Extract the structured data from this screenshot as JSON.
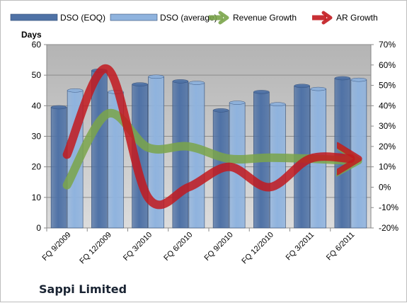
{
  "company": "Sappi Limited",
  "chart_data": {
    "type": "bar",
    "categories": [
      "FQ 9/2009",
      "FQ 12/2009",
      "FQ 3/2010",
      "FQ 6/2010",
      "FQ 9/2010",
      "FQ 12/2010",
      "FQ 3/2011",
      "FQ 6/2011"
    ],
    "left_axis_title": "Days",
    "left_ylim": [
      0,
      60
    ],
    "left_ticks": [
      "0",
      "10",
      "20",
      "30",
      "40",
      "50",
      "60"
    ],
    "right_ylim": [
      -20,
      70
    ],
    "right_ticks": [
      "-20%",
      "-10%",
      "0%",
      "10%",
      "20%",
      "30%",
      "40%",
      "50%",
      "60%",
      "70%"
    ],
    "series": [
      {
        "name": "DSO (EOQ)",
        "kind": "bar",
        "axis": "left",
        "color": "#4f72a6",
        "values": [
          39.5,
          51.5,
          47,
          48,
          38.5,
          44.5,
          46.5,
          49
        ]
      },
      {
        "name": "DSO (average)",
        "kind": "bar",
        "axis": "left",
        "color": "#8fb3de",
        "values": [
          45,
          44.5,
          49.5,
          47.5,
          41,
          40.5,
          45.5,
          48.5
        ]
      },
      {
        "name": "Revenue Growth",
        "kind": "arrow-line",
        "axis": "right",
        "color": "#7aa44a",
        "values": [
          1,
          36,
          19.5,
          20,
          14,
          14.5,
          14,
          13
        ]
      },
      {
        "name": "AR Growth",
        "kind": "arrow-line",
        "axis": "right",
        "color": "#c2191f",
        "values": [
          16,
          58,
          -5,
          0,
          10,
          0,
          14,
          14
        ]
      }
    ],
    "grid": true,
    "legend_position": "top",
    "plot_background": "#c0c0c0"
  }
}
